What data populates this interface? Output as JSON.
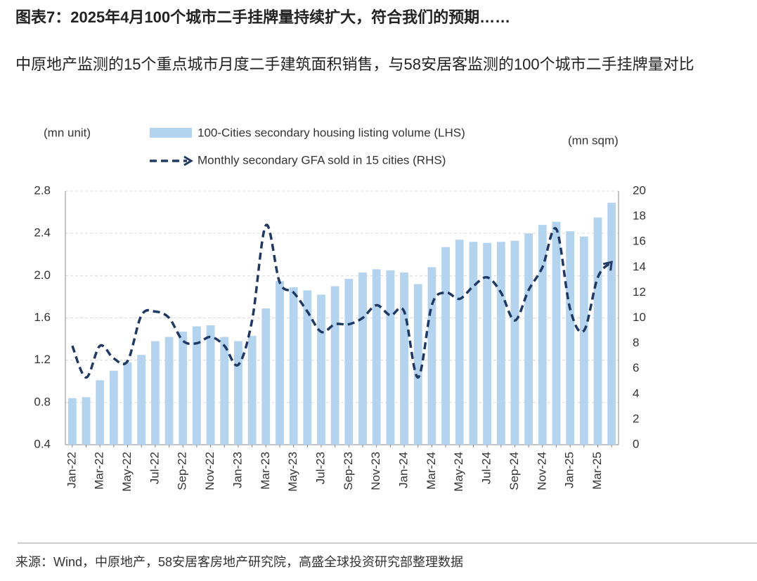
{
  "chart_data": {
    "type": "bar-line",
    "title": "图表7：2025年4月100个城市二手挂牌量持续扩大，符合我们的预期……",
    "subtitle": "中原地产监测的15个重点城市月度二手建筑面积销售，与58安居客监测的100个城市二手挂牌量对比",
    "y_label": "(mn unit)",
    "y2_label": "(mn sqm)",
    "source": "来源：Wind，中原地产，58安居客房地产研究院，高盛全球投资研究部整理数据",
    "categories": [
      "Jan-22",
      null,
      "Mar-22",
      null,
      "May-22",
      null,
      "Jul-22",
      null,
      "Sep-22",
      null,
      "Nov-22",
      null,
      "Jan-23",
      null,
      "Mar-23",
      null,
      "May-23",
      null,
      "Jul-23",
      null,
      "Sep-23",
      null,
      "Nov-23",
      null,
      "Jan-24",
      null,
      "Mar-24",
      null,
      "May-24",
      null,
      "Jul-24",
      null,
      "Sep-24",
      null,
      "Nov-24",
      null,
      "Jan-25",
      null,
      "Mar-25",
      null
    ],
    "series": [
      {
        "name": "100-Cities secondary housing listing volume (LHS)",
        "type": "bar",
        "color": "#b4d3ee",
        "axis": "y",
        "values": [
          0.84,
          0.85,
          1.01,
          1.1,
          1.18,
          1.25,
          1.38,
          1.42,
          1.47,
          1.52,
          1.53,
          1.42,
          1.38,
          1.43,
          1.69,
          1.95,
          1.89,
          1.86,
          1.82,
          1.9,
          1.97,
          2.03,
          2.06,
          2.05,
          2.03,
          1.92,
          2.08,
          2.27,
          2.34,
          2.32,
          2.31,
          2.32,
          2.33,
          2.4,
          2.48,
          2.51,
          2.42,
          2.37,
          2.55,
          2.69
        ]
      },
      {
        "name": "Monthly secondary GFA sold in 15 cities (RHS)",
        "type": "line",
        "color": "#1f3864",
        "axis": "y2",
        "values": [
          7.8,
          5.3,
          7.8,
          6.8,
          6.6,
          10.2,
          10.5,
          10.0,
          8.2,
          8.0,
          8.5,
          7.8,
          6.3,
          9.8,
          17.3,
          12.8,
          12.0,
          10.5,
          8.9,
          9.5,
          9.5,
          10.0,
          11.0,
          10.2,
          10.5,
          5.3,
          11.0,
          12.0,
          11.5,
          12.5,
          13.2,
          12.0,
          9.8,
          12.2,
          14.0,
          17.0,
          10.7,
          9.0,
          13.2,
          14.4
        ]
      }
    ],
    "ylim": [
      0.4,
      2.8
    ],
    "yticks": [
      0.4,
      0.8,
      1.2,
      1.6,
      {
        "value": 2,
        "label": "2.0"
      },
      2.4,
      2.8
    ],
    "y2lim": [
      0,
      20
    ],
    "y2ticks": [
      0,
      2,
      4,
      6,
      8,
      10,
      12,
      14,
      16,
      18,
      20
    ],
    "grid": true
  }
}
